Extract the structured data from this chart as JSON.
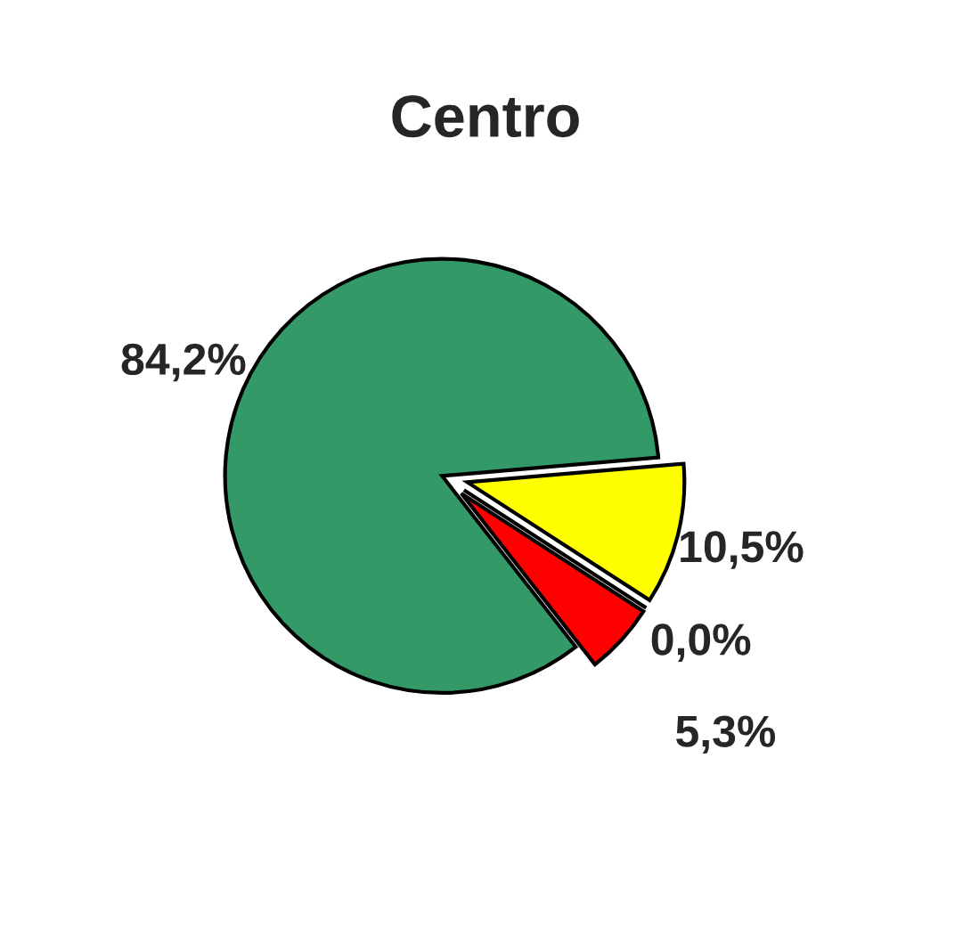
{
  "chart_data": {
    "type": "pie",
    "title": "Centro",
    "categories": [
      null,
      null,
      null,
      null
    ],
    "values": [
      84.2,
      10.5,
      0.0,
      5.3
    ],
    "colors": [
      "#339966",
      "#ffff00",
      "#996633",
      "#ff0000"
    ],
    "value_labels": [
      "84,2%",
      "10,5%",
      "0,0%",
      "5,3%"
    ]
  }
}
